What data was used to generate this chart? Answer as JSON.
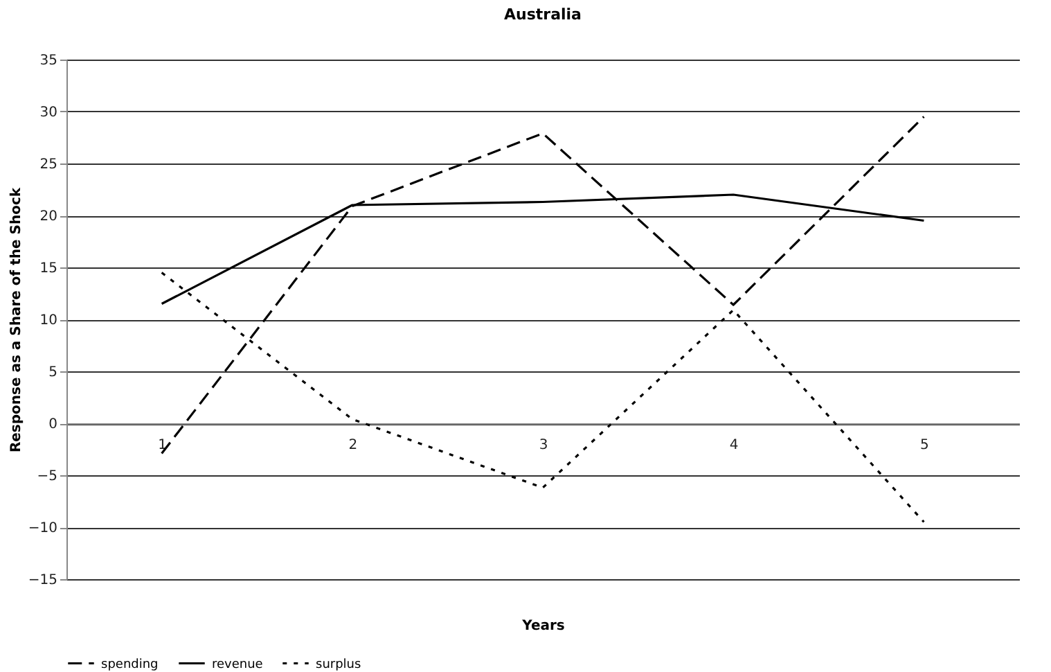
{
  "chart_data": {
    "type": "line",
    "title": "Australia",
    "xlabel": "Years",
    "ylabel": "Response as a Share of the Shock",
    "categories": [
      "1",
      "2",
      "3",
      "4",
      "5"
    ],
    "series": [
      {
        "name": "spending",
        "color": "#000000",
        "line_style": "dashed",
        "values": [
          -2.9,
          20.9,
          27.9,
          11.4,
          29.5
        ]
      },
      {
        "name": "revenue",
        "color": "#000000",
        "line_style": "solid",
        "values": [
          11.5,
          21.0,
          21.3,
          22.0,
          19.5
        ]
      },
      {
        "name": "surplus",
        "color": "#000000",
        "line_style": "dotted",
        "values": [
          14.5,
          0.4,
          -6.2,
          10.9,
          -9.5
        ]
      }
    ],
    "ylim": [
      -15,
      35
    ],
    "yticks": [
      -15,
      -10,
      -5,
      0,
      5,
      10,
      15,
      20,
      25,
      30,
      35
    ],
    "grid": "y",
    "legend": "bottom",
    "marker": "none"
  }
}
